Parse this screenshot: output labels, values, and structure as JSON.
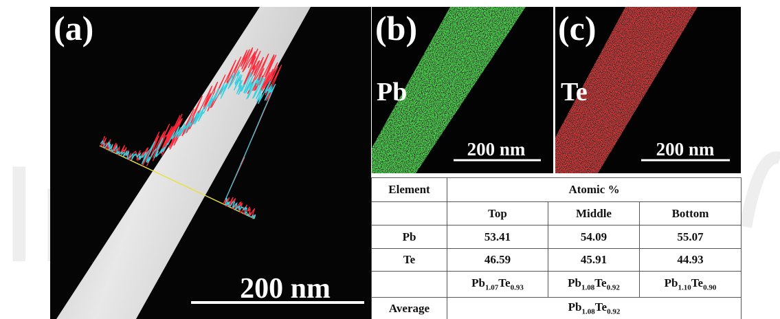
{
  "panels": [
    {
      "label": "(a)",
      "scale_bar": "200 nm"
    },
    {
      "label": "(b)",
      "element": "Pb",
      "scale_bar": "200 nm"
    },
    {
      "label": "(c)",
      "element": "Te",
      "scale_bar": "200 nm"
    }
  ],
  "table": {
    "header": [
      "Element",
      "Atomic %"
    ],
    "subheader": [
      "Top",
      "Middle",
      "Bottom"
    ],
    "rows": [
      [
        "Pb",
        "53.41",
        "54.09",
        "55.07"
      ],
      [
        "Te",
        "46.59",
        "45.91",
        "44.93"
      ]
    ],
    "formulas": [
      [
        "Pb",
        "1.07",
        "Te",
        "0.93"
      ],
      [
        "Pb",
        "1.08",
        "Te",
        "0.92"
      ],
      [
        "Pb",
        "1.10",
        "Te",
        "0.90"
      ]
    ],
    "average": {
      "label": "Average",
      "formula": [
        "Pb",
        "1.08",
        "Te",
        "0.92"
      ]
    }
  }
}
